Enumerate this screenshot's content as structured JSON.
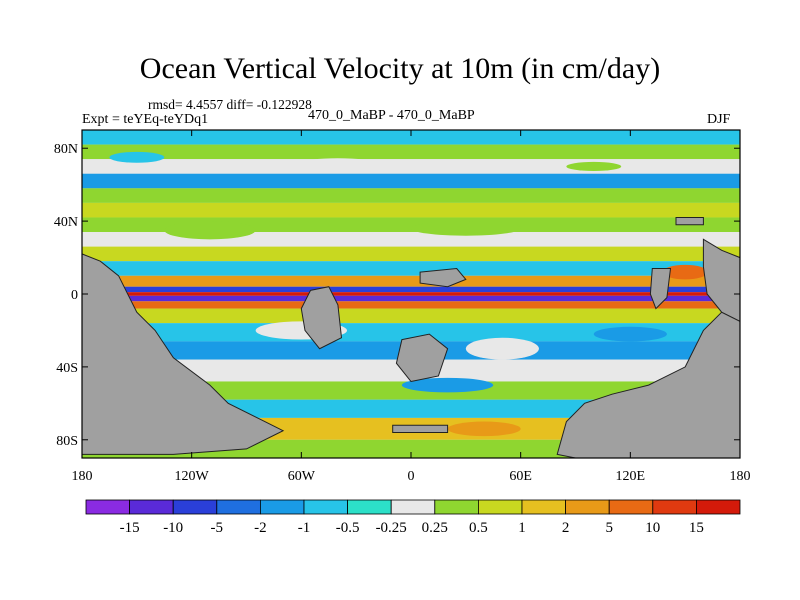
{
  "figure": {
    "title": "Ocean Vertical Velocity at 10m (in cm/day)",
    "stats": "rmsd= 4.4557 diff= -0.122928",
    "expt_label": "Expt = teYEq-teYDq1",
    "center_label": "470_0_MaBP - 470_0_MaBP",
    "season": "DJF"
  },
  "axes": {
    "lon_ticks": [
      "180",
      "120W",
      "60W",
      "0",
      "60E",
      "120E",
      "180"
    ],
    "lat_ticks": [
      "80N",
      "40N",
      "0",
      "40S",
      "80S"
    ]
  },
  "colorbar": {
    "labels": [
      "-15",
      "-10",
      "-5",
      "-2",
      "-1",
      "-0.5",
      "-0.25",
      "0.25",
      "0.5",
      "1",
      "2",
      "5",
      "10",
      "15"
    ],
    "colors": [
      "#8a2be2",
      "#5a2ad8",
      "#2a3fd9",
      "#1f6fe0",
      "#1a9be6",
      "#27c4e8",
      "#2ce0c8",
      "#e8e8e8",
      "#8fd630",
      "#c8d820",
      "#e6c020",
      "#e89a18",
      "#e86a14",
      "#e03a10",
      "#d41a0a"
    ]
  },
  "map": {
    "land_color": "#a0a0a0",
    "bands": [
      {
        "lat1": 90,
        "lat2": 82,
        "color": "#27c4e8"
      },
      {
        "lat1": 82,
        "lat2": 74,
        "color": "#8fd630"
      },
      {
        "lat1": 74,
        "lat2": 66,
        "color": "#e8e8e8"
      },
      {
        "lat1": 66,
        "lat2": 58,
        "color": "#1a9be6"
      },
      {
        "lat1": 58,
        "lat2": 50,
        "color": "#8fd630"
      },
      {
        "lat1": 50,
        "lat2": 42,
        "color": "#c8d820"
      },
      {
        "lat1": 42,
        "lat2": 34,
        "color": "#8fd630"
      },
      {
        "lat1": 34,
        "lat2": 26,
        "color": "#e8e8e8"
      },
      {
        "lat1": 26,
        "lat2": 18,
        "color": "#c8d820"
      },
      {
        "lat1": 18,
        "lat2": 10,
        "color": "#27c4e8"
      },
      {
        "lat1": 10,
        "lat2": 4,
        "color": "#e89a18"
      },
      {
        "lat1": 4,
        "lat2": 1,
        "color": "#2a3fd9"
      },
      {
        "lat1": 1,
        "lat2": -1,
        "color": "#d41a0a"
      },
      {
        "lat1": -1,
        "lat2": -4,
        "color": "#5a2ad8"
      },
      {
        "lat1": -4,
        "lat2": -8,
        "color": "#e86a14"
      },
      {
        "lat1": -8,
        "lat2": -16,
        "color": "#c8d820"
      },
      {
        "lat1": -16,
        "lat2": -26,
        "color": "#27c4e8"
      },
      {
        "lat1": -26,
        "lat2": -36,
        "color": "#1a9be6"
      },
      {
        "lat1": -36,
        "lat2": -48,
        "color": "#e8e8e8"
      },
      {
        "lat1": -48,
        "lat2": -58,
        "color": "#8fd630"
      },
      {
        "lat1": -58,
        "lat2": -68,
        "color": "#27c4e8"
      },
      {
        "lat1": -68,
        "lat2": -80,
        "color": "#e6c020"
      },
      {
        "lat1": -80,
        "lat2": -90,
        "color": "#8fd630"
      }
    ],
    "patches": [
      {
        "lon": -150,
        "lat": 75,
        "w": 30,
        "h": 6,
        "color": "#27c4e8"
      },
      {
        "lon": -40,
        "lat": 72,
        "w": 40,
        "h": 5,
        "color": "#e8e8e8"
      },
      {
        "lon": 100,
        "lat": 70,
        "w": 30,
        "h": 5,
        "color": "#8fd630"
      },
      {
        "lon": -110,
        "lat": 35,
        "w": 50,
        "h": 10,
        "color": "#8fd630"
      },
      {
        "lon": 30,
        "lat": 36,
        "w": 60,
        "h": 8,
        "color": "#8fd630"
      },
      {
        "lon": -60,
        "lat": -20,
        "w": 50,
        "h": 10,
        "color": "#e8e8e8"
      },
      {
        "lon": 50,
        "lat": -30,
        "w": 40,
        "h": 12,
        "color": "#e8e8e8"
      },
      {
        "lon": 120,
        "lat": -22,
        "w": 40,
        "h": 8,
        "color": "#1a9be6"
      },
      {
        "lon": -140,
        "lat": -45,
        "w": 40,
        "h": 10,
        "color": "#27c4e8"
      },
      {
        "lon": 20,
        "lat": -50,
        "w": 50,
        "h": 8,
        "color": "#1a9be6"
      },
      {
        "lon": -170,
        "lat": -10,
        "w": 25,
        "h": 8,
        "color": "#e89a18"
      },
      {
        "lon": 150,
        "lat": 12,
        "w": 25,
        "h": 8,
        "color": "#e86a14"
      },
      {
        "lon": -110,
        "lat": -70,
        "w": 40,
        "h": 10,
        "color": "#e89a18"
      },
      {
        "lon": 40,
        "lat": -74,
        "w": 40,
        "h": 8,
        "color": "#e89a18"
      }
    ],
    "land": [
      {
        "name": "land-americas-west",
        "points": [
          [
            -180,
            22
          ],
          [
            -170,
            18
          ],
          [
            -160,
            10
          ],
          [
            -150,
            -10
          ],
          [
            -140,
            -20
          ],
          [
            -130,
            -35
          ],
          [
            -110,
            -50
          ],
          [
            -100,
            -60
          ],
          [
            -80,
            -70
          ],
          [
            -70,
            -75
          ],
          [
            -90,
            -85
          ],
          [
            -130,
            -88
          ],
          [
            -160,
            -88
          ],
          [
            -180,
            -88
          ]
        ]
      },
      {
        "name": "land-antarctic-africa",
        "points": [
          [
            -10,
            -72
          ],
          [
            20,
            -72
          ],
          [
            20,
            -76
          ],
          [
            -10,
            -76
          ]
        ]
      },
      {
        "name": "land-south-east",
        "points": [
          [
            180,
            -90
          ],
          [
            180,
            -15
          ],
          [
            170,
            -10
          ],
          [
            160,
            -20
          ],
          [
            150,
            -40
          ],
          [
            130,
            -50
          ],
          [
            110,
            -55
          ],
          [
            95,
            -60
          ],
          [
            85,
            -70
          ],
          [
            80,
            -88
          ],
          [
            90,
            -90
          ]
        ]
      },
      {
        "name": "land-east-tropics",
        "points": [
          [
            160,
            30
          ],
          [
            170,
            24
          ],
          [
            180,
            20
          ],
          [
            180,
            -15
          ],
          [
            170,
            -10
          ],
          [
            162,
            0
          ],
          [
            160,
            15
          ]
        ]
      },
      {
        "name": "island-mid-atlantic",
        "points": [
          [
            -55,
            2
          ],
          [
            -45,
            4
          ],
          [
            -40,
            -6
          ],
          [
            -38,
            -24
          ],
          [
            -50,
            -30
          ],
          [
            -58,
            -20
          ],
          [
            -60,
            -8
          ]
        ]
      },
      {
        "name": "island-south-atlantic",
        "points": [
          [
            -5,
            -25
          ],
          [
            10,
            -22
          ],
          [
            20,
            -30
          ],
          [
            15,
            -45
          ],
          [
            0,
            -48
          ],
          [
            -8,
            -38
          ]
        ]
      },
      {
        "name": "island-north-central",
        "points": [
          [
            5,
            12
          ],
          [
            25,
            14
          ],
          [
            30,
            8
          ],
          [
            20,
            4
          ],
          [
            5,
            6
          ]
        ]
      },
      {
        "name": "island-east",
        "points": [
          [
            132,
            14
          ],
          [
            142,
            14
          ],
          [
            140,
            -2
          ],
          [
            134,
            -8
          ],
          [
            131,
            0
          ]
        ]
      },
      {
        "name": "island-northeast",
        "points": [
          [
            145,
            42
          ],
          [
            160,
            42
          ],
          [
            160,
            38
          ],
          [
            145,
            38
          ]
        ]
      }
    ]
  }
}
